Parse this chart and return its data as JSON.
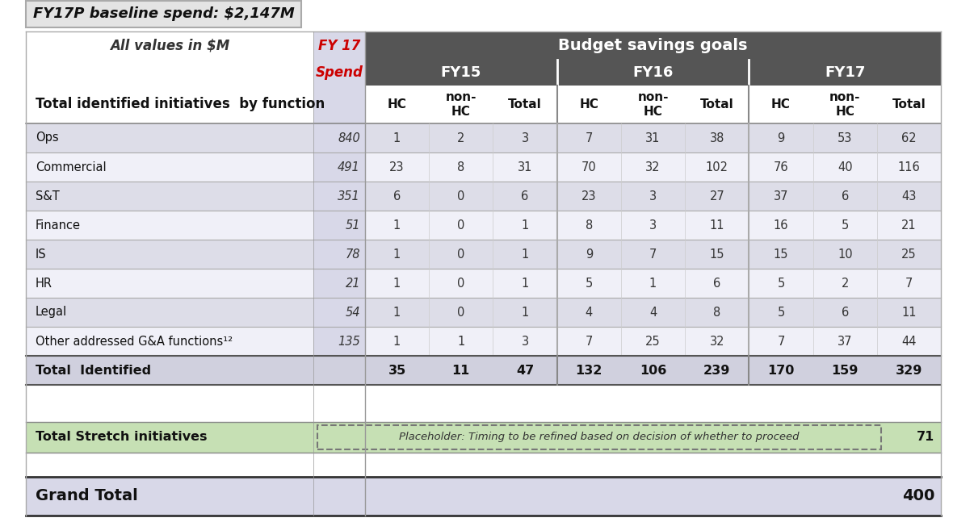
{
  "title_box": "FY17P baseline spend: $2,147M",
  "header_label": "All values in $M",
  "fy17_label": "FY 17",
  "budget_savings_label": "Budget savings goals",
  "spend_label": "Spend",
  "fy15_label": "FY15",
  "fy16_label": "FY16",
  "fy17_label2": "FY17",
  "row_header": "Total identified initiatives  by function",
  "rows": [
    {
      "name": "Ops",
      "spend": "840",
      "fy15_hc": "1",
      "fy15_nhc": "2",
      "fy15_tot": "3",
      "fy16_hc": "7",
      "fy16_nhc": "31",
      "fy16_tot": "38",
      "fy17_hc": "9",
      "fy17_nhc": "53",
      "fy17_tot": "62"
    },
    {
      "name": "Commercial",
      "spend": "491",
      "fy15_hc": "23",
      "fy15_nhc": "8",
      "fy15_tot": "31",
      "fy16_hc": "70",
      "fy16_nhc": "32",
      "fy16_tot": "102",
      "fy17_hc": "76",
      "fy17_nhc": "40",
      "fy17_tot": "116"
    },
    {
      "name": "S&T",
      "spend": "351",
      "fy15_hc": "6",
      "fy15_nhc": "0",
      "fy15_tot": "6",
      "fy16_hc": "23",
      "fy16_nhc": "3",
      "fy16_tot": "27",
      "fy17_hc": "37",
      "fy17_nhc": "6",
      "fy17_tot": "43"
    },
    {
      "name": "Finance",
      "spend": "51",
      "fy15_hc": "1",
      "fy15_nhc": "0",
      "fy15_tot": "1",
      "fy16_hc": "8",
      "fy16_nhc": "3",
      "fy16_tot": "11",
      "fy17_hc": "16",
      "fy17_nhc": "5",
      "fy17_tot": "21"
    },
    {
      "name": "IS",
      "spend": "78",
      "fy15_hc": "1",
      "fy15_nhc": "0",
      "fy15_tot": "1",
      "fy16_hc": "9",
      "fy16_nhc": "7",
      "fy16_tot": "15",
      "fy17_hc": "15",
      "fy17_nhc": "10",
      "fy17_tot": "25"
    },
    {
      "name": "HR",
      "spend": "21",
      "fy15_hc": "1",
      "fy15_nhc": "0",
      "fy15_tot": "1",
      "fy16_hc": "5",
      "fy16_nhc": "1",
      "fy16_tot": "6",
      "fy17_hc": "5",
      "fy17_nhc": "2",
      "fy17_tot": "7"
    },
    {
      "name": "Legal",
      "spend": "54",
      "fy15_hc": "1",
      "fy15_nhc": "0",
      "fy15_tot": "1",
      "fy16_hc": "4",
      "fy16_nhc": "4",
      "fy16_tot": "8",
      "fy17_hc": "5",
      "fy17_nhc": "6",
      "fy17_tot": "11"
    },
    {
      "name": "Other addressed G&A functions¹²",
      "spend": "135",
      "fy15_hc": "1",
      "fy15_nhc": "1",
      "fy15_tot": "3",
      "fy16_hc": "7",
      "fy16_nhc": "25",
      "fy16_tot": "32",
      "fy17_hc": "7",
      "fy17_nhc": "37",
      "fy17_tot": "44"
    }
  ],
  "total_row": {
    "name": "Total  Identified",
    "fy15_hc": "35",
    "fy15_nhc": "11",
    "fy15_tot": "47",
    "fy16_hc": "132",
    "fy16_nhc": "106",
    "fy16_tot": "239",
    "fy17_hc": "170",
    "fy17_nhc": "159",
    "fy17_tot": "329"
  },
  "stretch_row": {
    "name": "Total Stretch initiatives",
    "placeholder": "Placeholder: Timing to be refined based on decision of whether to proceed",
    "value": "71"
  },
  "grand_total": {
    "name": "Grand Total",
    "value": "400"
  },
  "colors": {
    "header_dark": "#555555",
    "row_light": "#dddde8",
    "row_white": "#f0f0f8",
    "total_row_bg": "#d0d0de",
    "stretch_bg": "#c6e0b4",
    "grand_total_bg": "#d8d8e8",
    "red_text": "#cc0000",
    "white_text": "#ffffff",
    "title_box_bg": "#e4e4e4",
    "spend_col_bg": "#d8d8e8",
    "fy17_col_bg": "#d8d8e8"
  }
}
